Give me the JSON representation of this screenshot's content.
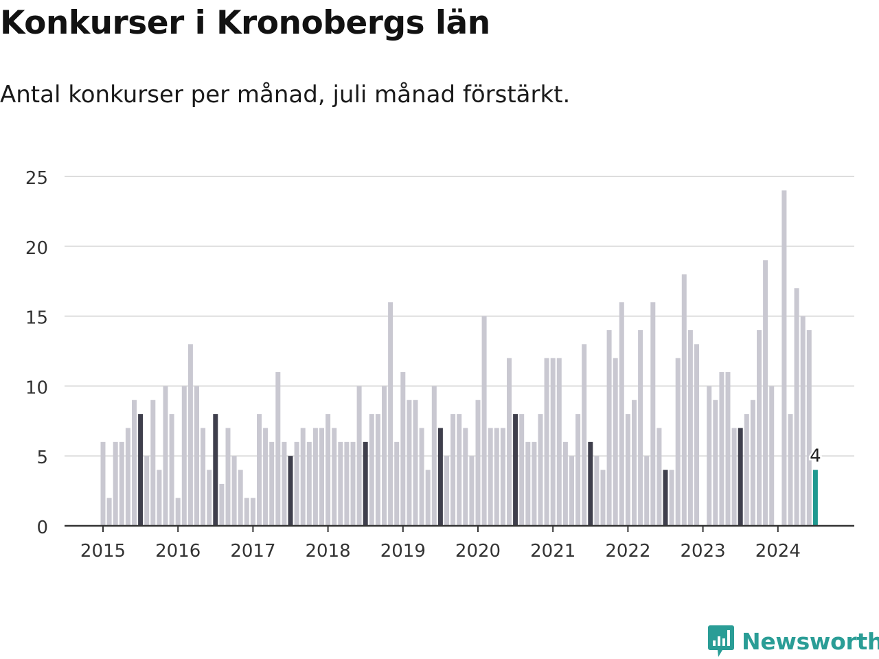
{
  "title": "Konkurser i Kronobergs län",
  "subtitle": "Antal konkurser per månad, juli månad förstärkt.",
  "brand": {
    "name": "Newsworthy",
    "color": "#2a9d96"
  },
  "colors": {
    "bar": "#c9c8d1",
    "july": "#3f3f4c",
    "current": "#1f9990",
    "grid": "#dddddd",
    "axis": "#333333"
  },
  "chart_data": {
    "type": "bar",
    "x_start": "2015-01",
    "ylim": [
      0,
      25
    ],
    "yticks": [
      0,
      5,
      10,
      15,
      20,
      25
    ],
    "xtick_labels": [
      "2015",
      "2016",
      "2017",
      "2018",
      "2019",
      "2020",
      "2021",
      "2022",
      "2023",
      "2024"
    ],
    "highlight": "July of each year (dark); last month (teal)",
    "values": [
      6,
      2,
      6,
      6,
      7,
      9,
      8,
      5,
      9,
      4,
      10,
      8,
      2,
      10,
      13,
      10,
      7,
      4,
      8,
      3,
      7,
      5,
      4,
      2,
      2,
      8,
      7,
      6,
      11,
      6,
      5,
      6,
      7,
      6,
      7,
      7,
      8,
      7,
      6,
      6,
      6,
      10,
      6,
      8,
      8,
      10,
      16,
      6,
      11,
      9,
      9,
      7,
      4,
      10,
      7,
      5,
      8,
      8,
      7,
      5,
      9,
      15,
      7,
      7,
      7,
      12,
      8,
      8,
      6,
      6,
      8,
      12,
      12,
      12,
      6,
      5,
      8,
      13,
      6,
      5,
      4,
      14,
      12,
      16,
      8,
      9,
      14,
      5,
      16,
      7,
      4,
      4,
      12,
      18,
      14,
      13,
      0,
      10,
      9,
      11,
      11,
      7,
      7,
      8,
      9,
      14,
      19,
      10,
      0,
      24,
      8,
      17,
      15,
      14,
      4
    ],
    "data_label": "4"
  }
}
